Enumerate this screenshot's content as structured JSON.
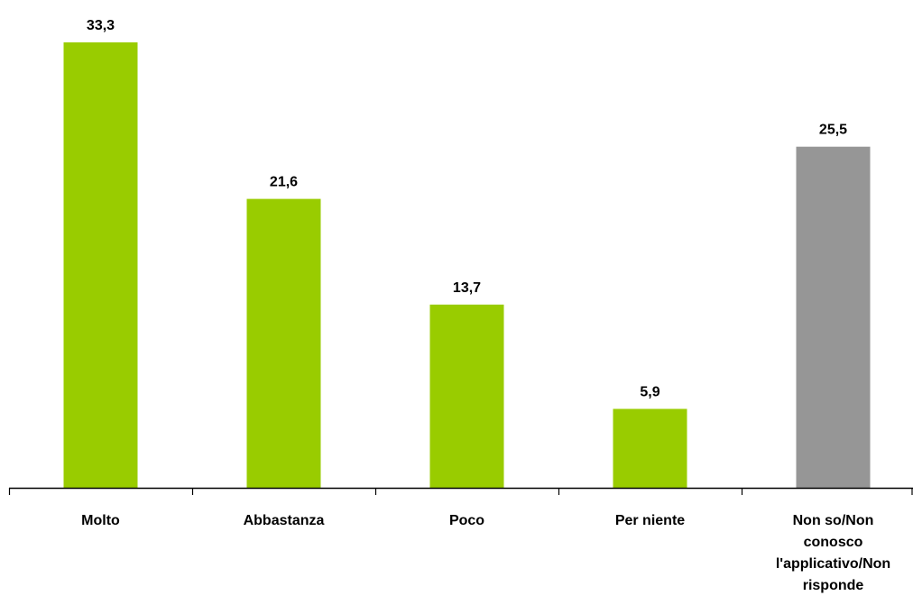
{
  "chart_data": {
    "type": "bar",
    "title": "",
    "xlabel": "",
    "ylabel": "",
    "categories": [
      [
        "Molto"
      ],
      [
        "Abbastanza"
      ],
      [
        "Poco"
      ],
      [
        "Per niente"
      ],
      [
        "Non so/Non",
        "conosco",
        "l'applicativo/Non",
        "risponde"
      ]
    ],
    "values": [
      33.3,
      21.6,
      13.7,
      5.9,
      25.5
    ],
    "value_labels": [
      "33,3",
      "21,6",
      "13,7",
      "5,9",
      "25,5"
    ],
    "bar_colors": [
      "#99cc00",
      "#99cc00",
      "#99cc00",
      "#99cc00",
      "#969696"
    ],
    "ylim": [
      0,
      33.3
    ],
    "grid": false,
    "legend": "none"
  }
}
